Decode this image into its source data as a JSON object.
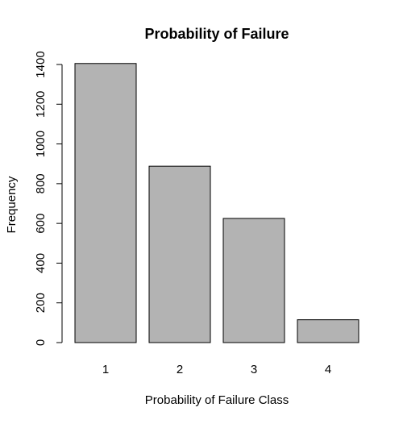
{
  "chart_data": {
    "type": "bar",
    "title": "Probability of Failure",
    "xlabel": "Probability of Failure Class",
    "ylabel": "Frequency",
    "categories": [
      "1",
      "2",
      "3",
      "4"
    ],
    "values": [
      1405,
      888,
      625,
      115
    ],
    "ylim": [
      0,
      1400
    ],
    "yticks": [
      0,
      200,
      400,
      600,
      800,
      1000,
      1200,
      1400
    ],
    "bar_color": "#b3b3b3",
    "grid": false
  }
}
